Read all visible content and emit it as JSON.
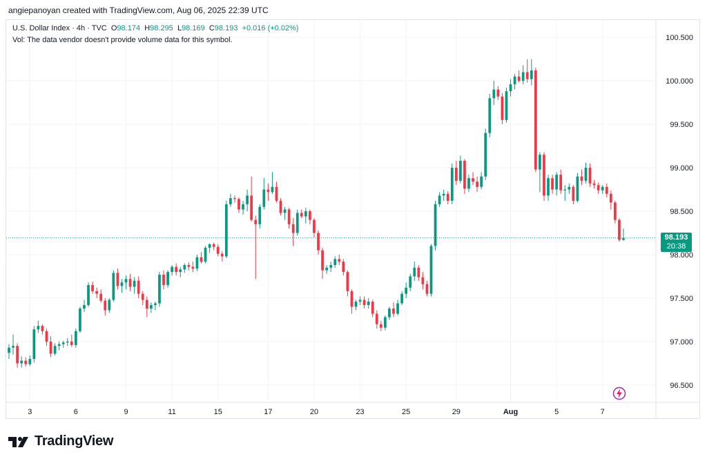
{
  "header": {
    "attribution": "angiepanoyan created with TradingView.com, Aug 06, 2025 22:39 UTC"
  },
  "legend": {
    "symbol": "U.S. Dollar Index · 4h · TVC",
    "o_label": "O",
    "o_value": "98.174",
    "h_label": "H",
    "h_value": "98.295",
    "l_label": "L",
    "l_value": "98.169",
    "c_label": "C",
    "c_value": "98.193",
    "change": "+0.016 (+0.02%)",
    "volume_note": "Vol: The data vendor doesn't provide volume data for this symbol."
  },
  "price_tag": {
    "price": "98.193",
    "countdown": "20:38"
  },
  "branding": {
    "logo_text": "TradingView"
  },
  "colors": {
    "up": "#089981",
    "down": "#F23645",
    "grid": "#f0f3fa",
    "axis_text": "#131722",
    "last_price_line": "#089981"
  },
  "icons": {
    "logo": "tradingview-logo-icon",
    "flash": "lightning-icon"
  },
  "chart_data": {
    "type": "candlestick",
    "title": "U.S. Dollar Index · 4h · TVC",
    "timeframe": "4h",
    "ylim": [
      96.3,
      100.7
    ],
    "y_ticks": [
      96.5,
      97.0,
      97.5,
      98.0,
      98.5,
      99.0,
      99.5,
      100.0,
      100.5
    ],
    "y_tick_labels": [
      "96.500",
      "97.000",
      "97.500",
      "98.000",
      "98.500",
      "99.000",
      "99.500",
      "100.000",
      "100.500"
    ],
    "x_tick_labels": [
      "3",
      "6",
      "9",
      "11",
      "15",
      "17",
      "20",
      "23",
      "25",
      "29",
      "Aug",
      "5",
      "7"
    ],
    "x_tick_bar_index": [
      5,
      16,
      28,
      39,
      50,
      62,
      73,
      84,
      95,
      107,
      120,
      131,
      142
    ],
    "last_price": 98.193,
    "grid": true,
    "candles": [
      [
        96.87,
        96.97,
        96.8,
        96.93
      ],
      [
        96.93,
        97.08,
        96.85,
        96.95
      ],
      [
        96.95,
        96.98,
        96.7,
        96.75
      ],
      [
        96.75,
        96.83,
        96.7,
        96.78
      ],
      [
        96.78,
        96.82,
        96.71,
        96.74
      ],
      [
        96.74,
        96.84,
        96.72,
        96.8
      ],
      [
        96.8,
        97.18,
        96.76,
        97.14
      ],
      [
        97.14,
        97.24,
        97.1,
        97.18
      ],
      [
        97.18,
        97.2,
        97.08,
        97.12
      ],
      [
        97.12,
        97.15,
        96.95,
        97.0
      ],
      [
        97.0,
        97.06,
        96.82,
        96.86
      ],
      [
        96.86,
        96.98,
        96.84,
        96.95
      ],
      [
        96.95,
        97.0,
        96.9,
        96.97
      ],
      [
        96.97,
        97.01,
        96.93,
        96.99
      ],
      [
        96.99,
        97.04,
        96.95,
        97.0
      ],
      [
        97.0,
        97.08,
        96.94,
        96.96
      ],
      [
        96.96,
        97.15,
        96.93,
        97.12
      ],
      [
        97.12,
        97.4,
        97.1,
        97.38
      ],
      [
        97.38,
        97.48,
        97.34,
        97.42
      ],
      [
        97.42,
        97.68,
        97.4,
        97.65
      ],
      [
        97.65,
        97.69,
        97.55,
        97.58
      ],
      [
        97.58,
        97.62,
        97.5,
        97.55
      ],
      [
        97.55,
        97.6,
        97.45,
        97.47
      ],
      [
        97.47,
        97.5,
        97.3,
        97.36
      ],
      [
        97.36,
        97.5,
        97.33,
        97.48
      ],
      [
        97.48,
        97.82,
        97.46,
        97.79
      ],
      [
        97.79,
        97.84,
        97.6,
        97.64
      ],
      [
        97.64,
        97.72,
        97.56,
        97.68
      ],
      [
        97.68,
        97.76,
        97.6,
        97.72
      ],
      [
        97.72,
        97.78,
        97.58,
        97.63
      ],
      [
        97.63,
        97.74,
        97.55,
        97.7
      ],
      [
        97.7,
        97.75,
        97.5,
        97.55
      ],
      [
        97.55,
        97.58,
        97.42,
        97.48
      ],
      [
        97.48,
        97.52,
        97.28,
        97.38
      ],
      [
        97.38,
        97.45,
        97.33,
        97.42
      ],
      [
        97.42,
        97.46,
        97.36,
        97.44
      ],
      [
        97.44,
        97.8,
        97.4,
        97.77
      ],
      [
        97.77,
        97.82,
        97.6,
        97.65
      ],
      [
        97.65,
        97.82,
        97.62,
        97.8
      ],
      [
        97.8,
        97.88,
        97.76,
        97.86
      ],
      [
        97.86,
        97.9,
        97.76,
        97.8
      ],
      [
        97.8,
        97.86,
        97.74,
        97.83
      ],
      [
        97.83,
        97.9,
        97.79,
        97.88
      ],
      [
        97.88,
        97.91,
        97.82,
        97.86
      ],
      [
        97.86,
        97.92,
        97.8,
        97.84
      ],
      [
        97.84,
        98.0,
        97.81,
        97.97
      ],
      [
        97.97,
        98.03,
        97.9,
        97.92
      ],
      [
        97.92,
        98.1,
        97.9,
        98.08
      ],
      [
        98.08,
        98.13,
        98.02,
        98.12
      ],
      [
        98.12,
        98.14,
        98.05,
        98.09
      ],
      [
        98.09,
        98.12,
        97.98,
        98.01
      ],
      [
        98.01,
        98.04,
        97.92,
        97.98
      ],
      [
        97.98,
        98.62,
        97.96,
        98.58
      ],
      [
        98.58,
        98.7,
        98.55,
        98.65
      ],
      [
        98.65,
        98.68,
        98.6,
        98.64
      ],
      [
        98.64,
        98.66,
        98.48,
        98.52
      ],
      [
        98.52,
        98.62,
        98.46,
        98.58
      ],
      [
        98.58,
        98.75,
        98.5,
        98.68
      ],
      [
        98.68,
        98.9,
        98.38,
        98.4
      ],
      [
        98.4,
        98.45,
        97.72,
        98.35
      ],
      [
        98.35,
        98.58,
        98.3,
        98.55
      ],
      [
        98.55,
        98.88,
        98.52,
        98.75
      ],
      [
        98.75,
        98.82,
        98.62,
        98.72
      ],
      [
        98.72,
        98.95,
        98.7,
        98.78
      ],
      [
        98.78,
        98.84,
        98.6,
        98.62
      ],
      [
        98.62,
        98.65,
        98.45,
        98.48
      ],
      [
        98.48,
        98.55,
        98.4,
        98.52
      ],
      [
        98.52,
        98.54,
        98.3,
        98.35
      ],
      [
        98.35,
        98.42,
        98.1,
        98.25
      ],
      [
        98.25,
        98.52,
        98.22,
        98.48
      ],
      [
        98.48,
        98.52,
        98.42,
        98.44
      ],
      [
        98.44,
        98.54,
        98.36,
        98.5
      ],
      [
        98.5,
        98.52,
        98.35,
        98.4
      ],
      [
        98.4,
        98.42,
        98.2,
        98.25
      ],
      [
        98.25,
        98.28,
        98.0,
        98.05
      ],
      [
        98.05,
        98.08,
        97.72,
        97.82
      ],
      [
        97.82,
        97.88,
        97.78,
        97.85
      ],
      [
        97.85,
        97.92,
        97.8,
        97.88
      ],
      [
        97.88,
        97.98,
        97.85,
        97.95
      ],
      [
        97.95,
        98.0,
        97.88,
        97.92
      ],
      [
        97.92,
        97.95,
        97.76,
        97.8
      ],
      [
        97.8,
        97.82,
        97.52,
        97.58
      ],
      [
        97.58,
        97.6,
        97.32,
        97.4
      ],
      [
        97.4,
        97.48,
        97.36,
        97.46
      ],
      [
        97.46,
        97.52,
        97.42,
        97.48
      ],
      [
        97.48,
        97.52,
        97.38,
        97.42
      ],
      [
        97.42,
        97.5,
        97.38,
        97.46
      ],
      [
        97.46,
        97.48,
        97.28,
        97.32
      ],
      [
        97.32,
        97.36,
        97.15,
        97.2
      ],
      [
        97.2,
        97.24,
        97.12,
        97.16
      ],
      [
        97.16,
        97.3,
        97.13,
        97.28
      ],
      [
        97.28,
        97.4,
        97.25,
        97.38
      ],
      [
        97.38,
        97.45,
        97.28,
        97.32
      ],
      [
        97.32,
        97.48,
        97.3,
        97.44
      ],
      [
        97.44,
        97.58,
        97.42,
        97.55
      ],
      [
        97.55,
        97.68,
        97.5,
        97.62
      ],
      [
        97.62,
        97.78,
        97.58,
        97.75
      ],
      [
        97.75,
        97.92,
        97.7,
        97.85
      ],
      [
        97.85,
        97.88,
        97.7,
        97.74
      ],
      [
        97.74,
        97.8,
        97.6,
        97.66
      ],
      [
        97.66,
        97.7,
        97.52,
        97.55
      ],
      [
        97.55,
        98.12,
        97.52,
        98.1
      ],
      [
        98.1,
        98.62,
        98.05,
        98.58
      ],
      [
        98.58,
        98.72,
        98.55,
        98.68
      ],
      [
        98.68,
        98.75,
        98.62,
        98.7
      ],
      [
        98.7,
        98.73,
        98.58,
        98.62
      ],
      [
        98.62,
        99.05,
        98.58,
        99.0
      ],
      [
        99.0,
        99.08,
        98.8,
        98.85
      ],
      [
        98.85,
        99.14,
        98.82,
        99.08
      ],
      [
        99.08,
        99.1,
        98.7,
        98.76
      ],
      [
        98.76,
        98.92,
        98.72,
        98.88
      ],
      [
        98.88,
        98.95,
        98.8,
        98.84
      ],
      [
        98.84,
        98.9,
        98.72,
        98.78
      ],
      [
        98.78,
        98.95,
        98.75,
        98.9
      ],
      [
        98.9,
        99.45,
        98.86,
        99.4
      ],
      [
        99.4,
        99.85,
        99.35,
        99.8
      ],
      [
        99.8,
        100.0,
        99.72,
        99.9
      ],
      [
        99.9,
        99.94,
        99.78,
        99.82
      ],
      [
        99.82,
        99.86,
        99.5,
        99.55
      ],
      [
        99.55,
        99.92,
        99.52,
        99.88
      ],
      [
        99.88,
        100.02,
        99.82,
        99.96
      ],
      [
        99.96,
        100.08,
        99.9,
        100.05
      ],
      [
        100.05,
        100.12,
        99.98,
        100.0
      ],
      [
        100.0,
        100.18,
        99.96,
        100.1
      ],
      [
        100.1,
        100.25,
        99.98,
        100.02
      ],
      [
        100.02,
        100.25,
        99.95,
        100.12
      ],
      [
        100.12,
        100.15,
        98.95,
        98.98
      ],
      [
        98.98,
        99.18,
        98.72,
        99.15
      ],
      [
        99.15,
        99.18,
        98.62,
        98.68
      ],
      [
        98.68,
        98.92,
        98.62,
        98.88
      ],
      [
        98.88,
        98.92,
        98.7,
        98.75
      ],
      [
        98.75,
        98.95,
        98.68,
        98.92
      ],
      [
        98.92,
        98.98,
        98.7,
        98.74
      ],
      [
        98.74,
        98.8,
        98.62,
        98.75
      ],
      [
        98.75,
        98.82,
        98.7,
        98.78
      ],
      [
        98.78,
        98.8,
        98.58,
        98.62
      ],
      [
        98.62,
        98.94,
        98.6,
        98.9
      ],
      [
        98.9,
        98.98,
        98.8,
        98.85
      ],
      [
        98.85,
        99.06,
        98.82,
        99.0
      ],
      [
        99.0,
        99.05,
        98.78,
        98.82
      ],
      [
        98.82,
        98.86,
        98.76,
        98.8
      ],
      [
        98.8,
        98.83,
        98.7,
        98.74
      ],
      [
        98.74,
        98.8,
        98.7,
        98.78
      ],
      [
        98.78,
        98.82,
        98.66,
        98.7
      ],
      [
        98.7,
        98.74,
        98.52,
        98.6
      ],
      [
        98.6,
        98.62,
        98.36,
        98.4
      ],
      [
        98.4,
        98.42,
        98.15,
        98.17
      ],
      [
        98.17,
        98.3,
        98.16,
        98.19
      ]
    ]
  }
}
